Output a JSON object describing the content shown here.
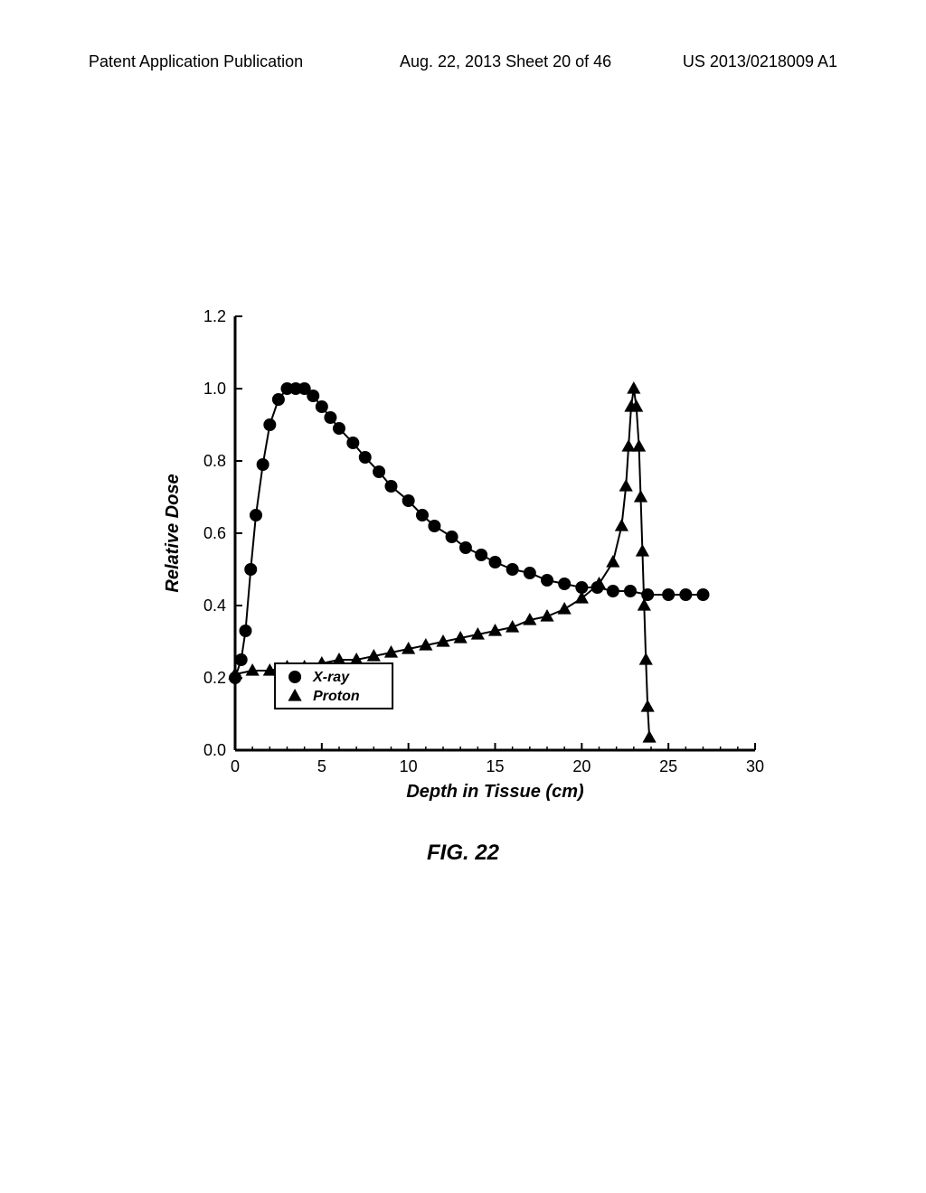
{
  "header": {
    "left": "Patent Application Publication",
    "center": "Aug. 22, 2013  Sheet 20 of 46",
    "right": "US 2013/0218009 A1"
  },
  "figure_caption": "FIG. 22",
  "chart": {
    "type": "line-scatter",
    "xlabel": "Depth in Tissue (cm)",
    "ylabel": "Relative Dose",
    "xlim": [
      0,
      30
    ],
    "ylim": [
      0.0,
      1.2
    ],
    "xticks": [
      0,
      5,
      10,
      15,
      20,
      25,
      30
    ],
    "yticks": [
      0.0,
      0.2,
      0.4,
      0.6,
      0.8,
      1.0,
      1.2
    ],
    "label_fontsize": 20,
    "tick_fontsize": 18,
    "legend_position": "bottom-left",
    "background_color": "#ffffff",
    "axis_color": "#000000",
    "line_color": "#000000",
    "marker_fill": "#000000",
    "line_width": 2,
    "marker_size_circle": 7,
    "marker_size_triangle": 8,
    "series": [
      {
        "label": "X-ray",
        "marker": "circle",
        "data": [
          {
            "x": 0,
            "y": 0.2
          },
          {
            "x": 0.35,
            "y": 0.25
          },
          {
            "x": 0.6,
            "y": 0.33
          },
          {
            "x": 0.9,
            "y": 0.5
          },
          {
            "x": 1.2,
            "y": 0.65
          },
          {
            "x": 1.6,
            "y": 0.79
          },
          {
            "x": 2.0,
            "y": 0.9
          },
          {
            "x": 2.5,
            "y": 0.97
          },
          {
            "x": 3.0,
            "y": 1.0
          },
          {
            "x": 3.5,
            "y": 1.0
          },
          {
            "x": 4.0,
            "y": 1.0
          },
          {
            "x": 4.5,
            "y": 0.98
          },
          {
            "x": 5.0,
            "y": 0.95
          },
          {
            "x": 5.5,
            "y": 0.92
          },
          {
            "x": 6.0,
            "y": 0.89
          },
          {
            "x": 6.8,
            "y": 0.85
          },
          {
            "x": 7.5,
            "y": 0.81
          },
          {
            "x": 8.3,
            "y": 0.77
          },
          {
            "x": 9.0,
            "y": 0.73
          },
          {
            "x": 10.0,
            "y": 0.69
          },
          {
            "x": 10.8,
            "y": 0.65
          },
          {
            "x": 11.5,
            "y": 0.62
          },
          {
            "x": 12.5,
            "y": 0.59
          },
          {
            "x": 13.3,
            "y": 0.56
          },
          {
            "x": 14.2,
            "y": 0.54
          },
          {
            "x": 15.0,
            "y": 0.52
          },
          {
            "x": 16.0,
            "y": 0.5
          },
          {
            "x": 17.0,
            "y": 0.49
          },
          {
            "x": 18.0,
            "y": 0.47
          },
          {
            "x": 19.0,
            "y": 0.46
          },
          {
            "x": 20.0,
            "y": 0.45
          },
          {
            "x": 20.9,
            "y": 0.45
          },
          {
            "x": 21.8,
            "y": 0.44
          },
          {
            "x": 22.8,
            "y": 0.44
          },
          {
            "x": 23.8,
            "y": 0.43
          },
          {
            "x": 25.0,
            "y": 0.43
          },
          {
            "x": 26.0,
            "y": 0.43
          },
          {
            "x": 27.0,
            "y": 0.43
          }
        ]
      },
      {
        "label": "Proton",
        "marker": "triangle",
        "data": [
          {
            "x": 0,
            "y": 0.21
          },
          {
            "x": 1,
            "y": 0.22
          },
          {
            "x": 2,
            "y": 0.22
          },
          {
            "x": 3,
            "y": 0.23
          },
          {
            "x": 4,
            "y": 0.23
          },
          {
            "x": 5,
            "y": 0.24
          },
          {
            "x": 6,
            "y": 0.25
          },
          {
            "x": 7,
            "y": 0.25
          },
          {
            "x": 8,
            "y": 0.26
          },
          {
            "x": 9,
            "y": 0.27
          },
          {
            "x": 10,
            "y": 0.28
          },
          {
            "x": 11,
            "y": 0.29
          },
          {
            "x": 12,
            "y": 0.3
          },
          {
            "x": 13,
            "y": 0.31
          },
          {
            "x": 14,
            "y": 0.32
          },
          {
            "x": 15,
            "y": 0.33
          },
          {
            "x": 16,
            "y": 0.34
          },
          {
            "x": 17,
            "y": 0.36
          },
          {
            "x": 18,
            "y": 0.37
          },
          {
            "x": 19,
            "y": 0.39
          },
          {
            "x": 20,
            "y": 0.42
          },
          {
            "x": 21,
            "y": 0.46
          },
          {
            "x": 21.8,
            "y": 0.52
          },
          {
            "x": 22.3,
            "y": 0.62
          },
          {
            "x": 22.55,
            "y": 0.73
          },
          {
            "x": 22.7,
            "y": 0.84
          },
          {
            "x": 22.85,
            "y": 0.95
          },
          {
            "x": 23.0,
            "y": 1.0
          },
          {
            "x": 23.15,
            "y": 0.95
          },
          {
            "x": 23.3,
            "y": 0.84
          },
          {
            "x": 23.4,
            "y": 0.7
          },
          {
            "x": 23.5,
            "y": 0.55
          },
          {
            "x": 23.6,
            "y": 0.4
          },
          {
            "x": 23.7,
            "y": 0.25
          },
          {
            "x": 23.8,
            "y": 0.12
          },
          {
            "x": 23.9,
            "y": 0.035
          }
        ]
      }
    ]
  }
}
